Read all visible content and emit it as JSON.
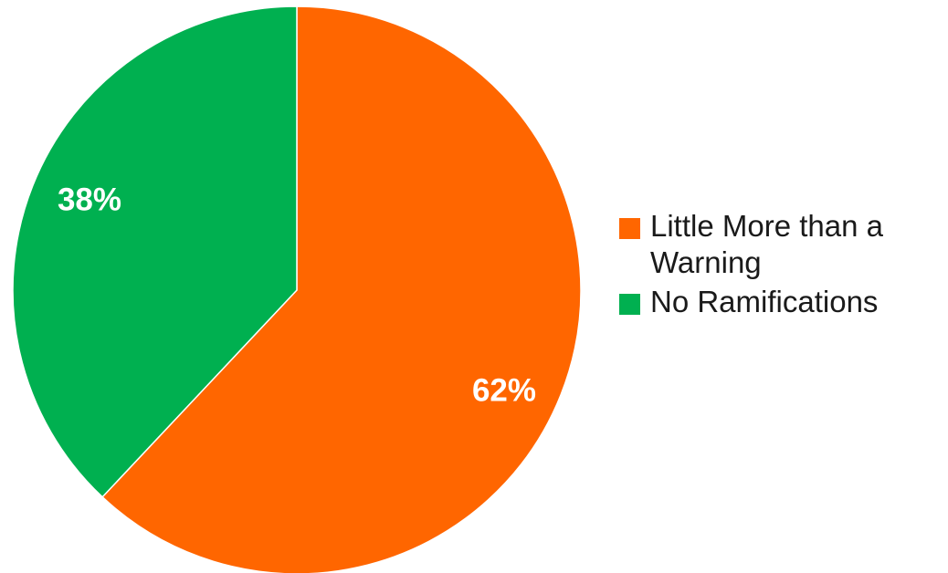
{
  "chart_data": {
    "type": "pie",
    "slices": [
      {
        "name": "Little More than a Warning",
        "value": 62,
        "label": "62%",
        "color": "#FF6600"
      },
      {
        "name": "No Ramifications",
        "value": 38,
        "label": "38%",
        "color": "#00B050"
      }
    ],
    "legend": {
      "position": "right",
      "items": [
        {
          "label": "Little More than a Warning",
          "color": "#FF6600"
        },
        {
          "label": "No Ramifications",
          "color": "#00B050"
        }
      ]
    }
  }
}
